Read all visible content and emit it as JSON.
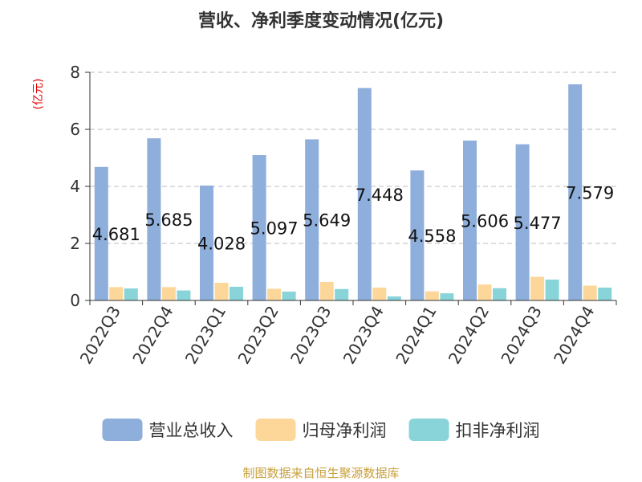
{
  "chart_data": {
    "type": "bar",
    "title": "营收、净利季度变动情况(亿元)",
    "ylabel": "(亿元)",
    "xlabel": "",
    "ylim": [
      0,
      8
    ],
    "yticks": [
      0,
      2,
      4,
      6,
      8
    ],
    "grid": true,
    "legend_position": "bottom",
    "categories": [
      "2022Q3",
      "2022Q4",
      "2023Q1",
      "2023Q2",
      "2023Q3",
      "2023Q4",
      "2024Q1",
      "2024Q2",
      "2024Q3",
      "2024Q4"
    ],
    "series": [
      {
        "name": "营业总收入",
        "color": "#8eaedb",
        "values": [
          4.681,
          5.685,
          4.028,
          5.097,
          5.649,
          7.448,
          4.558,
          5.606,
          5.477,
          7.579
        ],
        "data_labels": [
          "4.681",
          "5.685",
          "4.028",
          "5.097",
          "5.649",
          "7.448",
          "4.558",
          "5.606",
          "5.477",
          "7.579"
        ]
      },
      {
        "name": "归母净利润",
        "color": "#fdd79a",
        "values": [
          0.47,
          0.47,
          0.62,
          0.41,
          0.65,
          0.45,
          0.32,
          0.56,
          0.83,
          0.52
        ]
      },
      {
        "name": "扣非净利润",
        "color": "#88d4d8",
        "values": [
          0.42,
          0.35,
          0.48,
          0.31,
          0.4,
          0.14,
          0.25,
          0.43,
          0.73,
          0.45
        ]
      }
    ]
  },
  "source": "制图数据来自恒生聚源数据库"
}
